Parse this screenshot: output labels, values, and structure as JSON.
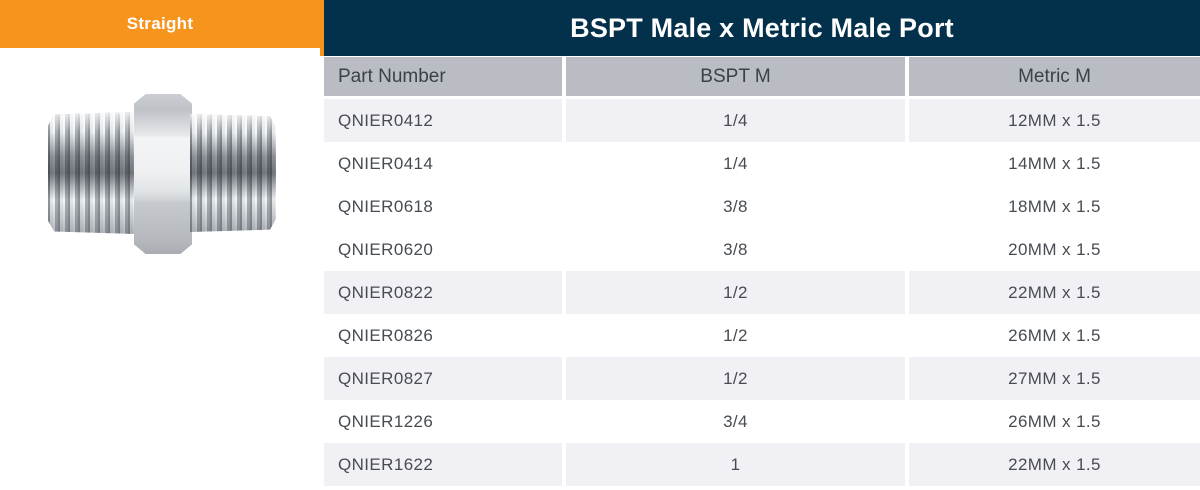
{
  "badge": {
    "label": "Straight"
  },
  "header": {
    "title": "BSPT Male x Metric Male Port"
  },
  "product": {
    "alt": "Zinc-plated steel hex nipple fitting, male threaded both ends"
  },
  "table": {
    "columns": [
      "Part Number",
      "BSPT M",
      "Metric M"
    ],
    "rows": [
      {
        "part_number": "QNIER0412",
        "bspt_m": "1/4",
        "metric_m": "12MM x 1.5",
        "shaded": true
      },
      {
        "part_number": "QNIER0414",
        "bspt_m": "1/4",
        "metric_m": "14MM x 1.5",
        "shaded": false
      },
      {
        "part_number": "QNIER0618",
        "bspt_m": "3/8",
        "metric_m": "18MM x 1.5",
        "shaded": false
      },
      {
        "part_number": "QNIER0620",
        "bspt_m": "3/8",
        "metric_m": "20MM x 1.5",
        "shaded": false
      },
      {
        "part_number": "QNIER0822",
        "bspt_m": "1/2",
        "metric_m": "22MM x 1.5",
        "shaded": true
      },
      {
        "part_number": "QNIER0826",
        "bspt_m": "1/2",
        "metric_m": "26MM x 1.5",
        "shaded": false
      },
      {
        "part_number": "QNIER0827",
        "bspt_m": "1/2",
        "metric_m": "27MM x 1.5",
        "shaded": true
      },
      {
        "part_number": "QNIER1226",
        "bspt_m": "3/4",
        "metric_m": "26MM x 1.5",
        "shaded": false
      },
      {
        "part_number": "QNIER1622",
        "bspt_m": "1",
        "metric_m": "22MM x 1.5",
        "shaded": true
      }
    ]
  },
  "colors": {
    "accent_orange": "#f7941e",
    "title_navy": "#03304a",
    "header_gray": "#b9bcc2",
    "row_stripe": "#f1f1f5",
    "text_dark": "#3a4149"
  }
}
